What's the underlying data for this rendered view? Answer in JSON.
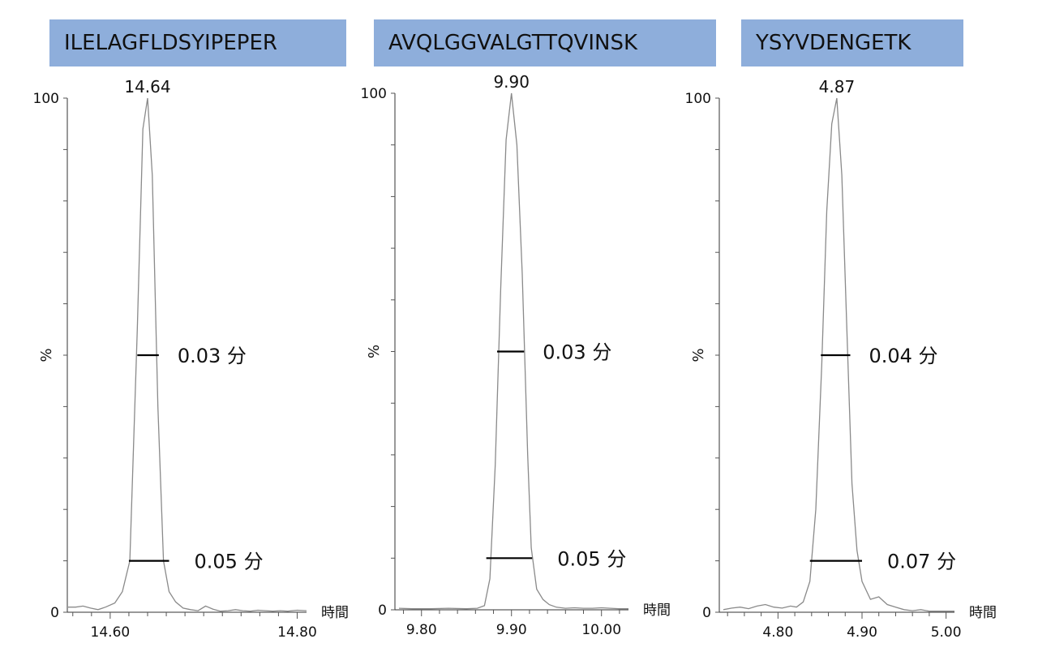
{
  "chart_data": [
    {
      "type": "line",
      "title": "ILELAGFLDSYIPEPER",
      "xlabel": "時間",
      "ylabel": "%",
      "xlim": [
        14.555,
        14.81
      ],
      "ylim": [
        0,
        100
      ],
      "x_ticks": [
        "14.60",
        "14.80"
      ],
      "y_ticks": [
        "0",
        "100"
      ],
      "apex": {
        "x": 14.64,
        "label": "14.64"
      },
      "series": [
        {
          "x": [
            14.555,
            14.563,
            14.571,
            14.579,
            14.587,
            14.595,
            14.605,
            14.613,
            14.621,
            14.629,
            14.635,
            14.64,
            14.645,
            14.651,
            14.657,
            14.663,
            14.67,
            14.678,
            14.686,
            14.694,
            14.702,
            14.71,
            14.718,
            14.726,
            14.734,
            14.742,
            14.75,
            14.758,
            14.766,
            14.774,
            14.782,
            14.79,
            14.8,
            14.81
          ],
          "values": [
            1.0,
            1.0,
            1.2,
            0.8,
            0.5,
            1.0,
            1.8,
            4.0,
            10.0,
            55.0,
            94.0,
            100.0,
            85.0,
            40.0,
            10.0,
            4.0,
            2.0,
            0.8,
            0.5,
            0.3,
            1.2,
            0.6,
            0.2,
            0.3,
            0.5,
            0.3,
            0.2,
            0.4,
            0.3,
            0.2,
            0.3,
            0.2,
            0.4,
            0.3
          ]
        }
      ],
      "widths": [
        {
          "level": 50,
          "x_start": 14.629,
          "x_end": 14.652,
          "label": "0.03 分"
        },
        {
          "level": 10,
          "x_start": 14.62,
          "x_end": 14.663,
          "label": "0.05 分"
        }
      ]
    },
    {
      "type": "line",
      "title": "AVQLGGVALGTTQVINSK",
      "xlabel": "時間",
      "ylabel": "%",
      "xlim": [
        9.775,
        10.03
      ],
      "ylim": [
        0,
        100
      ],
      "x_ticks": [
        "9.80",
        "9.90",
        "10.00"
      ],
      "y_ticks": [
        "0",
        "100"
      ],
      "apex": {
        "x": 9.9,
        "label": "9.90"
      },
      "series": [
        {
          "x": [
            9.775,
            9.79,
            9.81,
            9.83,
            9.85,
            9.862,
            9.87,
            9.876,
            9.882,
            9.888,
            9.894,
            9.9,
            9.906,
            9.912,
            9.918,
            9.922,
            9.928,
            9.935,
            9.942,
            9.95,
            9.96,
            9.97,
            9.98,
            9.99,
            10.0,
            10.01,
            10.02,
            10.03
          ],
          "values": [
            0.3,
            0.2,
            0.2,
            0.3,
            0.2,
            0.3,
            0.8,
            6.0,
            28.0,
            62.0,
            91.0,
            100.0,
            90.0,
            65.0,
            30.0,
            12.0,
            4.0,
            2.0,
            1.0,
            0.5,
            0.3,
            0.4,
            0.3,
            0.3,
            0.4,
            0.3,
            0.2,
            0.2
          ]
        }
      ],
      "widths": [
        {
          "level": 50,
          "x_start": 9.884,
          "x_end": 9.914,
          "label": "0.03 分"
        },
        {
          "level": 10,
          "x_start": 9.872,
          "x_end": 9.923,
          "label": "0.05 分"
        }
      ]
    },
    {
      "type": "line",
      "title": "YSYVDENGETK",
      "xlabel": "時間",
      "ylabel": "%",
      "xlim": [
        4.735,
        5.01
      ],
      "ylim": [
        0,
        100
      ],
      "x_ticks": [
        "4.80",
        "4.90",
        "5.00"
      ],
      "y_ticks": [
        "0",
        "100"
      ],
      "apex": {
        "x": 4.87,
        "label": "4.87"
      },
      "series": [
        {
          "x": [
            4.735,
            4.745,
            4.755,
            4.765,
            4.775,
            4.785,
            4.795,
            4.805,
            4.815,
            4.822,
            4.83,
            4.838,
            4.845,
            4.852,
            4.858,
            4.864,
            4.87,
            4.876,
            4.882,
            4.888,
            4.894,
            4.9,
            4.91,
            4.92,
            4.93,
            4.94,
            4.95,
            4.96,
            4.97,
            4.98,
            4.99,
            5.0,
            5.01
          ],
          "values": [
            0.5,
            0.8,
            1.0,
            0.7,
            1.2,
            1.5,
            1.0,
            0.8,
            1.2,
            1.0,
            2.0,
            6.0,
            20.0,
            48.0,
            78.0,
            95.0,
            100.0,
            85.0,
            55.0,
            25.0,
            12.0,
            6.0,
            2.5,
            3.0,
            1.5,
            1.0,
            0.5,
            0.3,
            0.5,
            0.2,
            0.2,
            0.2,
            0.2
          ]
        }
      ],
      "widths": [
        {
          "level": 50,
          "x_start": 4.851,
          "x_end": 4.886,
          "label": "0.04 分"
        },
        {
          "level": 10,
          "x_start": 4.838,
          "x_end": 4.9,
          "label": "0.07 分"
        }
      ]
    }
  ]
}
